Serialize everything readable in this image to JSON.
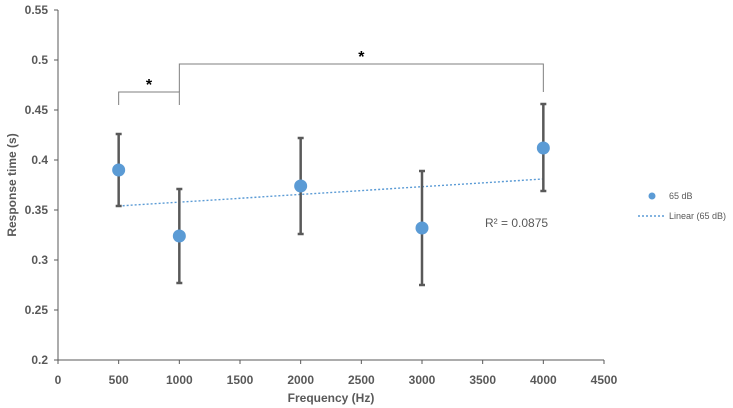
{
  "chart_data": {
    "type": "scatter",
    "title": "",
    "xlabel": "Frequency (Hz)",
    "ylabel": "Response time (s)",
    "xlim": [
      0,
      4500
    ],
    "ylim": [
      0.2,
      0.55
    ],
    "x_ticks": [
      0,
      500,
      1000,
      1500,
      2000,
      2500,
      3000,
      3500,
      4000,
      4500
    ],
    "x_tick_labels": [
      "0",
      "500",
      "1000",
      "1500",
      "2000",
      "2500",
      "3000",
      "3500",
      "4000",
      "4500"
    ],
    "y_ticks": [
      0.2,
      0.25,
      0.3,
      0.35,
      0.4,
      0.45,
      0.5,
      0.55
    ],
    "y_tick_labels": [
      "0.2",
      "0.25",
      "0.3",
      "0.35",
      "0.4",
      "0.45",
      "0.5",
      "0.55"
    ],
    "grid": false,
    "legend_position": "right",
    "series": [
      {
        "name": "65 dB",
        "color": "#5b9bd5",
        "x": [
          500,
          1000,
          2000,
          3000,
          4000
        ],
        "y": [
          0.39,
          0.324,
          0.374,
          0.332,
          0.412
        ],
        "error_low": [
          0.354,
          0.277,
          0.326,
          0.275,
          0.369
        ],
        "error_high": [
          0.426,
          0.371,
          0.422,
          0.389,
          0.456
        ]
      }
    ],
    "trendline": {
      "name": "Linear (65 dB)",
      "type": "linear",
      "color": "#5b9bd5",
      "x": [
        500,
        4000
      ],
      "y": [
        0.354,
        0.381
      ],
      "label": "R² = 0.0875"
    },
    "significance_brackets": [
      {
        "x_start": 500,
        "x_end": 1000,
        "y_base": 0.455,
        "y_top": 0.468,
        "label": "*"
      },
      {
        "x_start": 1000,
        "x_end": 4000,
        "y_base": 0.468,
        "y_top": 0.496,
        "label": "*"
      }
    ],
    "error_bar_color": "#595959",
    "axis_color": "#595959"
  }
}
